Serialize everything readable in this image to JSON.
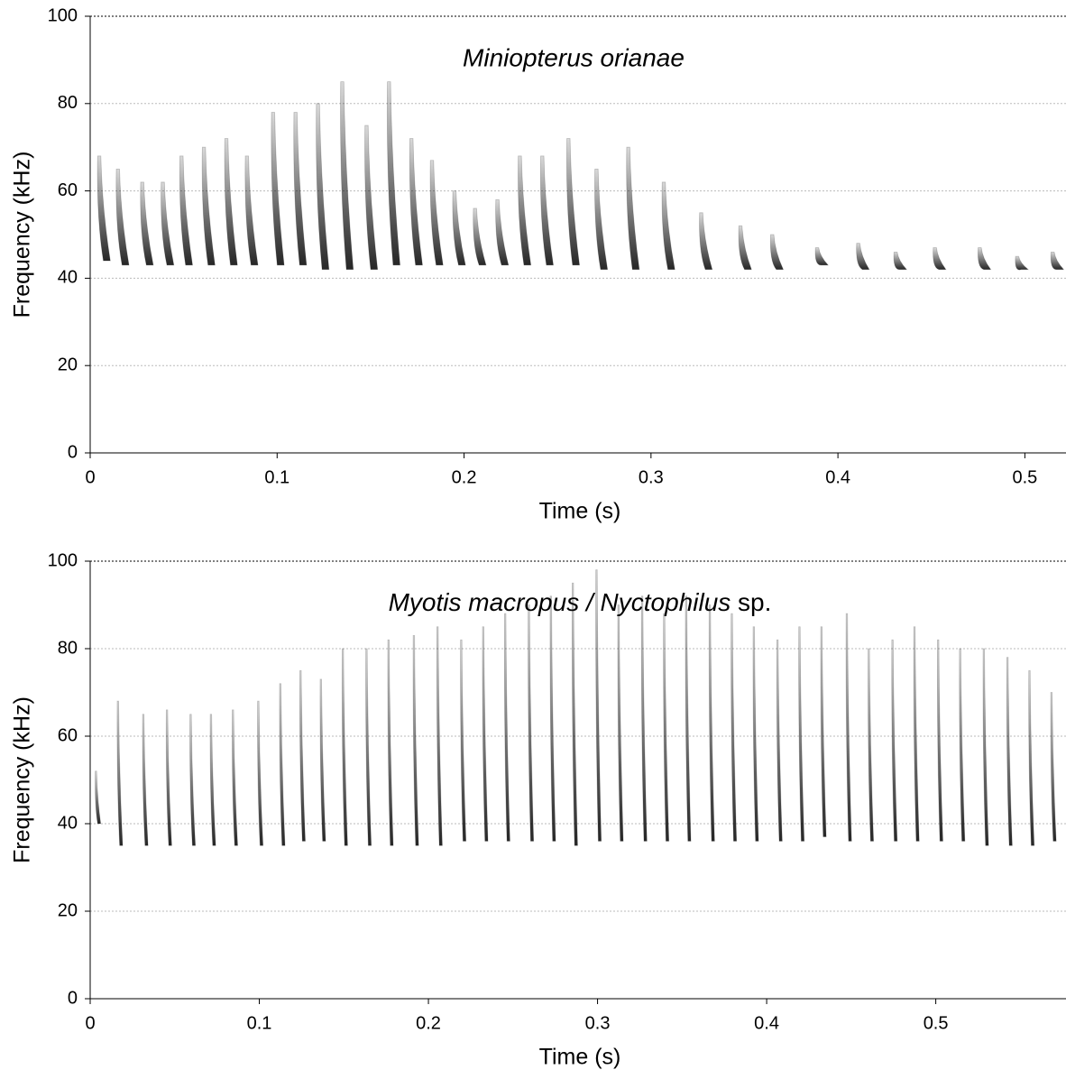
{
  "chart_data": [
    {
      "type": "spectrogram",
      "title": "Miniopterus orianae",
      "xlabel": "Time (s)",
      "ylabel": "Frequency (kHz)",
      "xlim": [
        0,
        0.522
      ],
      "ylim": [
        0,
        100
      ],
      "xticks": [
        0,
        0.1,
        0.2,
        0.3,
        0.4,
        0.5
      ],
      "yticks": [
        0,
        20,
        40,
        60,
        80,
        100
      ],
      "grid": true,
      "color": "#222222",
      "x": [
        0.004,
        0.014,
        0.027,
        0.038,
        0.048,
        0.06,
        0.072,
        0.083,
        0.097,
        0.109,
        0.121,
        0.134,
        0.147,
        0.159,
        0.171,
        0.182,
        0.194,
        0.205,
        0.217,
        0.229,
        0.241,
        0.255,
        0.27,
        0.287,
        0.306,
        0.326,
        0.347,
        0.364,
        0.388,
        0.41,
        0.43,
        0.451,
        0.475,
        0.495,
        0.514
      ],
      "fmax": [
        68,
        65,
        62,
        62,
        68,
        70,
        72,
        68,
        78,
        78,
        80,
        85,
        75,
        85,
        72,
        67,
        60,
        56,
        58,
        68,
        68,
        72,
        65,
        70,
        62,
        55,
        52,
        50,
        47,
        48,
        46,
        47,
        47,
        45,
        46
      ],
      "fmin": [
        44,
        43,
        43,
        43,
        43,
        43,
        43,
        43,
        43,
        43,
        42,
        42,
        42,
        43,
        43,
        43,
        43,
        43,
        43,
        43,
        43,
        43,
        42,
        42,
        42,
        42,
        42,
        42,
        43,
        42,
        42,
        42,
        42,
        42,
        42
      ]
    },
    {
      "type": "spectrogram",
      "title": {
        "italic": "Myotis macropus / Nyctophilus",
        "plain": "sp."
      },
      "xlabel": "Time (s)",
      "ylabel": "Frequency (kHz)",
      "xlim": [
        0,
        0.577
      ],
      "ylim": [
        0,
        100
      ],
      "xticks": [
        0,
        0.1,
        0.2,
        0.3,
        0.4,
        0.5
      ],
      "yticks": [
        0,
        20,
        40,
        60,
        80,
        100
      ],
      "grid": true,
      "color": "#1a1a1a",
      "x": [
        0.003,
        0.016,
        0.031,
        0.045,
        0.059,
        0.071,
        0.084,
        0.099,
        0.112,
        0.124,
        0.136,
        0.149,
        0.163,
        0.176,
        0.191,
        0.205,
        0.219,
        0.232,
        0.245,
        0.259,
        0.272,
        0.285,
        0.299,
        0.312,
        0.326,
        0.339,
        0.352,
        0.366,
        0.379,
        0.392,
        0.406,
        0.419,
        0.432,
        0.447,
        0.46,
        0.474,
        0.487,
        0.501,
        0.514,
        0.528,
        0.542,
        0.555,
        0.568
      ],
      "fmax": [
        52,
        68,
        65,
        66,
        65,
        65,
        66,
        68,
        72,
        75,
        73,
        80,
        80,
        82,
        83,
        85,
        82,
        85,
        88,
        90,
        92,
        95,
        98,
        90,
        92,
        88,
        92,
        90,
        88,
        85,
        82,
        85,
        85,
        88,
        80,
        82,
        85,
        82,
        80,
        80,
        78,
        75,
        70
      ],
      "fmin": [
        40,
        35,
        35,
        35,
        35,
        35,
        35,
        35,
        35,
        36,
        36,
        35,
        35,
        35,
        35,
        35,
        36,
        36,
        36,
        36,
        36,
        35,
        36,
        36,
        36,
        36,
        36,
        36,
        36,
        36,
        36,
        36,
        37,
        36,
        36,
        36,
        36,
        36,
        36,
        35,
        35,
        35,
        36
      ]
    }
  ]
}
